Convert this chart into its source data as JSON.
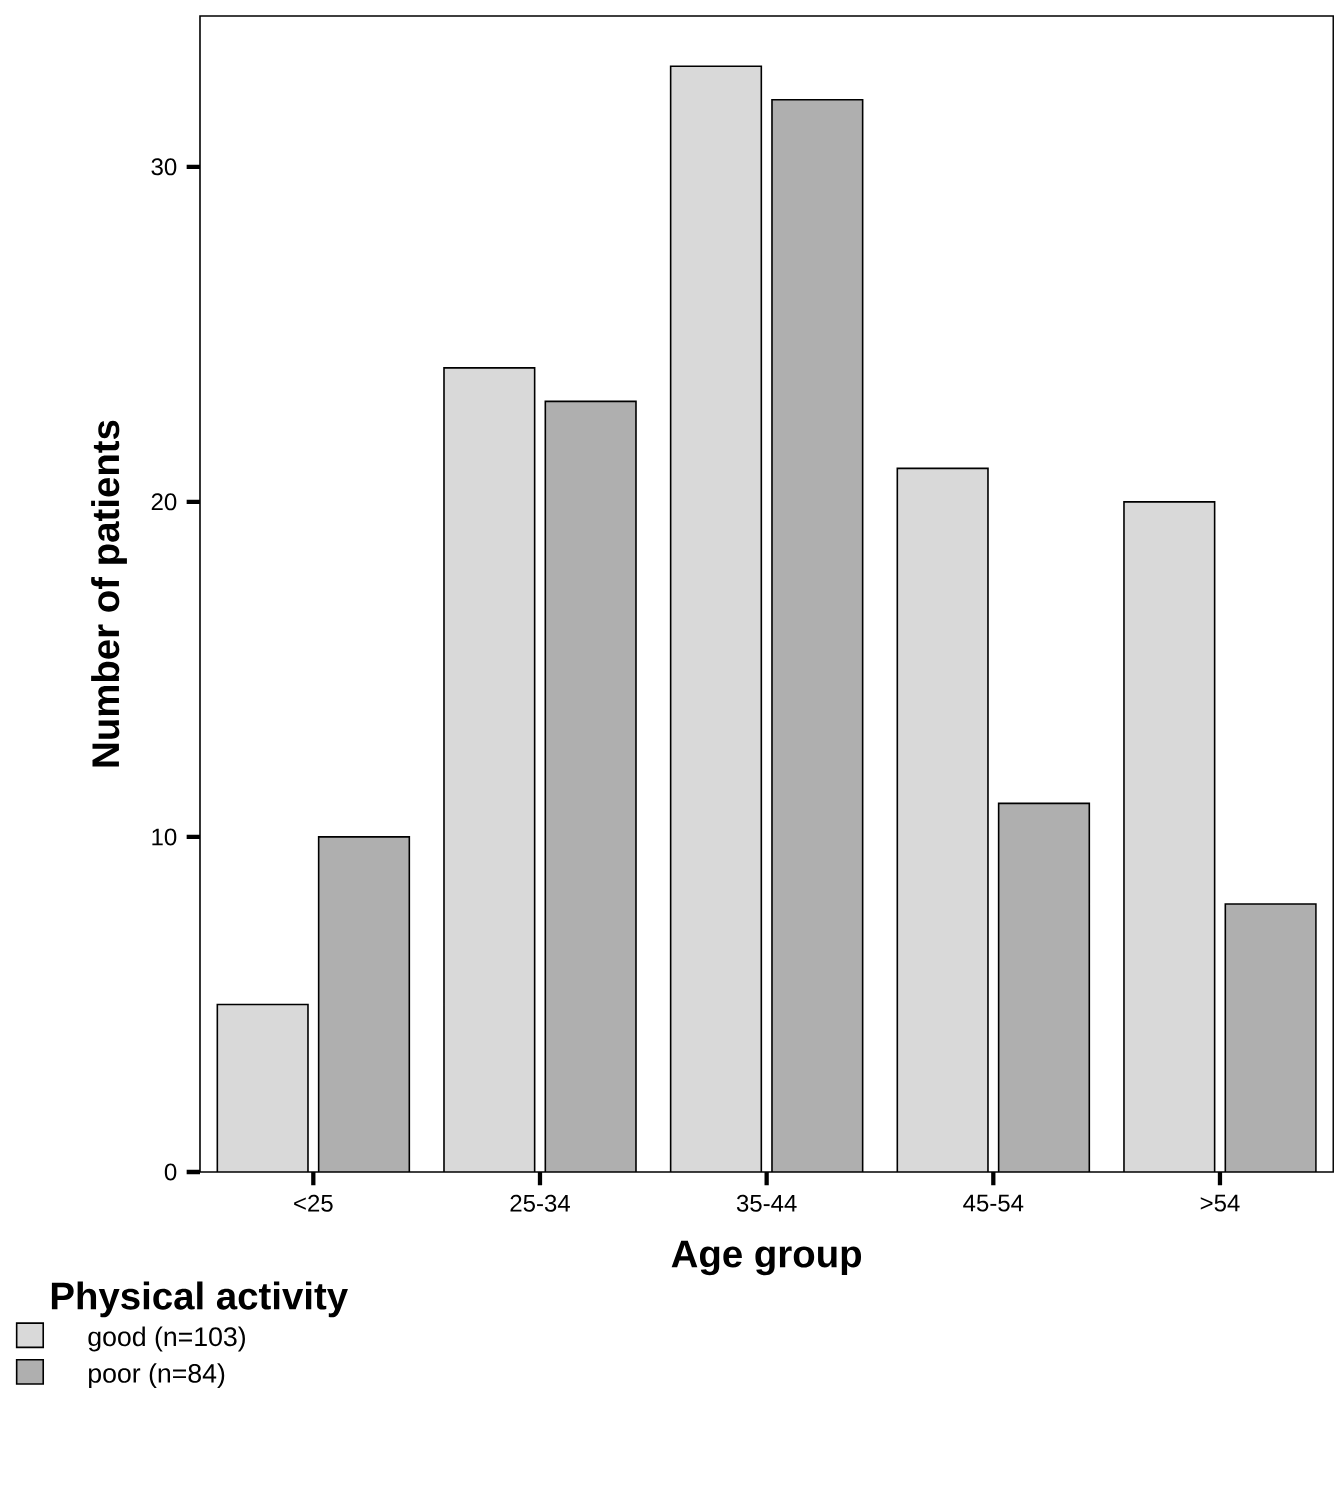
{
  "chart_data": {
    "type": "bar",
    "xlabel": "Age group",
    "ylabel": "Number of patients",
    "legend_title": "Physical activity",
    "categories": [
      "<25",
      "25-34",
      "35-44",
      "45-54",
      ">54"
    ],
    "series": [
      {
        "name": "good  (n=103)",
        "color": "#d9d9d9",
        "values": [
          5,
          24,
          33,
          21,
          20
        ]
      },
      {
        "name": "poor  (n=84)",
        "color": "#afafaf",
        "values": [
          10,
          23,
          32,
          11,
          8
        ]
      }
    ],
    "ylim": [
      0,
      34.5
    ],
    "yticks": [
      0,
      10,
      20,
      30
    ],
    "grid": false,
    "legend": "bottom left"
  }
}
